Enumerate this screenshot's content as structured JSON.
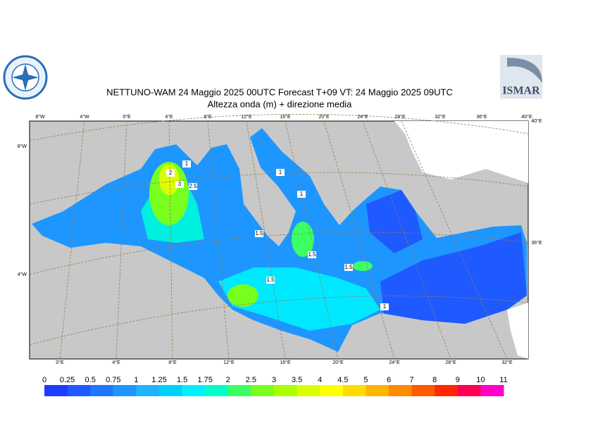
{
  "header": {
    "title": "NETTUNO-WAM  24   Maggio  2025 00UTC Forecast T+09 VT: 24   Maggio  2025 09UTC",
    "subtitle": "Altezza onda (m) + direzione media",
    "logo_right": "ISMAR"
  },
  "map": {
    "top_lon_labels": [
      "8°W",
      "4°W",
      "0°E",
      "4°E",
      "8°E",
      "12°E",
      "16°E",
      "20°E",
      "24°E",
      "28°E",
      "32°E",
      "36°E",
      "40°E"
    ],
    "bottom_lon_labels": [
      "0°E",
      "4°E",
      "8°E",
      "12°E",
      "16°E",
      "20°E",
      "24°E",
      "28°E",
      "32°E"
    ],
    "left_labels": [
      "8°W",
      "4°W"
    ],
    "right_labels": [
      "40°E",
      "36°E"
    ],
    "contour_labels": [
      "2",
      "3",
      "2.5",
      "1",
      "1",
      "1.5",
      "1.5",
      "1.5",
      "1.5",
      "1",
      "1"
    ]
  },
  "colorbar": {
    "levels": [
      "0",
      "0.25",
      "0.5",
      "0.75",
      "1",
      "1.25",
      "1.5",
      "1.75",
      "2",
      "2.5",
      "3",
      "3.5",
      "4",
      "4.5",
      "5",
      "6",
      "7",
      "8",
      "9",
      "10",
      "11"
    ],
    "colors": [
      "#1e3cff",
      "#1e5aff",
      "#1e78ff",
      "#1e96ff",
      "#1eb4ff",
      "#00d2ff",
      "#00f0ff",
      "#00ffc8",
      "#3cff64",
      "#78ff1e",
      "#aaff00",
      "#dcff00",
      "#ffff00",
      "#ffdc00",
      "#ffb400",
      "#ff8c00",
      "#ff5a00",
      "#ff2800",
      "#ff0050",
      "#ff00c8"
    ]
  }
}
